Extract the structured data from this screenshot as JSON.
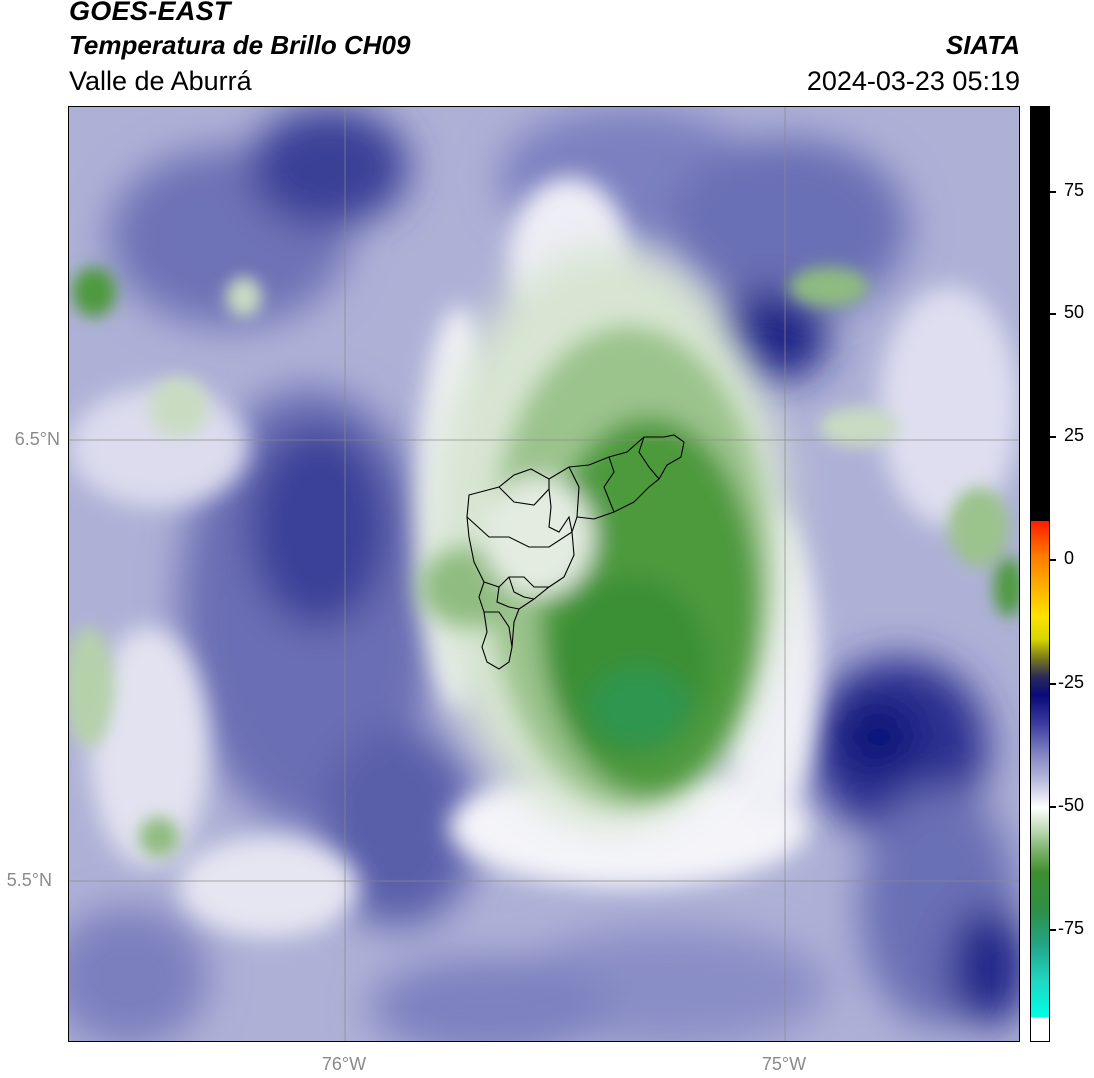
{
  "header": {
    "satellite": "GOES-EAST",
    "product": "Temperatura de Brillo CH09",
    "region": "Valle de Aburrá",
    "organization": "SIATA",
    "datetime": "2024-03-23 05:19"
  },
  "axes": {
    "lat_labels": [
      "6.5°N",
      "5.5°N"
    ],
    "lon_labels": [
      "76°W",
      "75°W"
    ]
  },
  "colorbar": {
    "ticks": [
      "75",
      "50",
      "25",
      "0",
      "-25",
      "-50",
      "-75"
    ],
    "colors": {
      "hot": "#000000",
      "warm": "#ff7a00",
      "cold_blue": "#0a0a7a",
      "neutral": "#ffffff",
      "cold_green": "#3d8f2e",
      "coldest": "#00ffe6"
    }
  }
}
